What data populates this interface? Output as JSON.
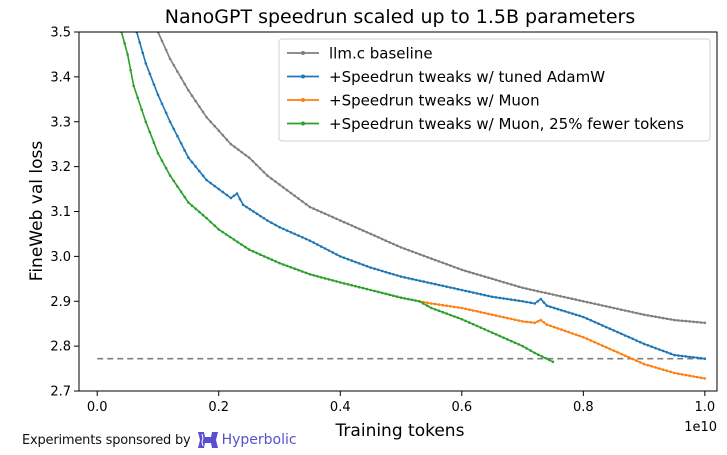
{
  "chart_data": {
    "type": "line",
    "title": "NanoGPT speedrun scaled up to 1.5B parameters",
    "xlabel": "Training tokens",
    "ylabel": "FineWeb val loss",
    "x_offset_label": "1e10",
    "xlim": [
      -0.03,
      1.02
    ],
    "ylim": [
      2.7,
      3.5
    ],
    "xticks": [
      0.0,
      0.2,
      0.4,
      0.6,
      0.8,
      1.0
    ],
    "xtick_labels": [
      "0.0",
      "0.2",
      "0.4",
      "0.6",
      "0.8",
      "1.0"
    ],
    "yticks": [
      2.7,
      2.8,
      2.9,
      3.0,
      3.1,
      3.2,
      3.3,
      3.4,
      3.5
    ],
    "ytick_labels": [
      "2.7",
      "2.8",
      "2.9",
      "3.0",
      "3.1",
      "3.2",
      "3.3",
      "3.4",
      "3.5"
    ],
    "grid": false,
    "legend_position": "top-right",
    "reference_line": {
      "y": 2.772,
      "x": [
        0.0,
        1.0
      ],
      "style": "dashed",
      "color": "#7f7f7f"
    },
    "series": [
      {
        "name": "llm.c baseline",
        "color": "#7f7f7f",
        "points": [
          [
            0.1,
            3.5
          ],
          [
            0.12,
            3.44
          ],
          [
            0.15,
            3.37
          ],
          [
            0.18,
            3.31
          ],
          [
            0.2,
            3.28
          ],
          [
            0.22,
            3.25
          ],
          [
            0.25,
            3.22
          ],
          [
            0.28,
            3.18
          ],
          [
            0.3,
            3.16
          ],
          [
            0.35,
            3.11
          ],
          [
            0.4,
            3.08
          ],
          [
            0.45,
            3.05
          ],
          [
            0.5,
            3.02
          ],
          [
            0.55,
            2.995
          ],
          [
            0.6,
            2.97
          ],
          [
            0.65,
            2.95
          ],
          [
            0.7,
            2.93
          ],
          [
            0.75,
            2.915
          ],
          [
            0.8,
            2.9
          ],
          [
            0.85,
            2.885
          ],
          [
            0.9,
            2.87
          ],
          [
            0.95,
            2.858
          ],
          [
            1.0,
            2.852
          ]
        ]
      },
      {
        "name": "+Speedrun tweaks w/ tuned AdamW",
        "color": "#1f77b4",
        "points": [
          [
            0.065,
            3.5
          ],
          [
            0.08,
            3.43
          ],
          [
            0.1,
            3.36
          ],
          [
            0.12,
            3.3
          ],
          [
            0.15,
            3.22
          ],
          [
            0.18,
            3.17
          ],
          [
            0.2,
            3.15
          ],
          [
            0.22,
            3.13
          ],
          [
            0.23,
            3.14
          ],
          [
            0.24,
            3.115
          ],
          [
            0.28,
            3.08
          ],
          [
            0.3,
            3.065
          ],
          [
            0.35,
            3.035
          ],
          [
            0.4,
            3.0
          ],
          [
            0.45,
            2.975
          ],
          [
            0.5,
            2.955
          ],
          [
            0.55,
            2.94
          ],
          [
            0.6,
            2.925
          ],
          [
            0.65,
            2.91
          ],
          [
            0.7,
            2.9
          ],
          [
            0.72,
            2.895
          ],
          [
            0.73,
            2.905
          ],
          [
            0.74,
            2.89
          ],
          [
            0.8,
            2.865
          ],
          [
            0.85,
            2.835
          ],
          [
            0.9,
            2.805
          ],
          [
            0.95,
            2.78
          ],
          [
            1.0,
            2.772
          ]
        ]
      },
      {
        "name": "+Speedrun tweaks w/ Muon",
        "color": "#ff7f0e",
        "points": [
          [
            0.53,
            2.9
          ],
          [
            0.55,
            2.895
          ],
          [
            0.6,
            2.885
          ],
          [
            0.65,
            2.87
          ],
          [
            0.7,
            2.855
          ],
          [
            0.72,
            2.852
          ],
          [
            0.73,
            2.858
          ],
          [
            0.74,
            2.848
          ],
          [
            0.8,
            2.82
          ],
          [
            0.85,
            2.79
          ],
          [
            0.9,
            2.76
          ],
          [
            0.95,
            2.74
          ],
          [
            1.0,
            2.728
          ]
        ]
      },
      {
        "name": "+Speedrun tweaks w/ Muon, 25% fewer tokens",
        "color": "#2ca02c",
        "points": [
          [
            0.04,
            3.5
          ],
          [
            0.05,
            3.45
          ],
          [
            0.06,
            3.38
          ],
          [
            0.08,
            3.3
          ],
          [
            0.1,
            3.23
          ],
          [
            0.12,
            3.18
          ],
          [
            0.15,
            3.12
          ],
          [
            0.18,
            3.085
          ],
          [
            0.2,
            3.06
          ],
          [
            0.25,
            3.015
          ],
          [
            0.3,
            2.985
          ],
          [
            0.35,
            2.96
          ],
          [
            0.4,
            2.942
          ],
          [
            0.45,
            2.925
          ],
          [
            0.5,
            2.908
          ],
          [
            0.53,
            2.9
          ],
          [
            0.55,
            2.885
          ],
          [
            0.6,
            2.86
          ],
          [
            0.65,
            2.83
          ],
          [
            0.7,
            2.8
          ],
          [
            0.72,
            2.785
          ],
          [
            0.75,
            2.765
          ]
        ]
      }
    ]
  },
  "footer": {
    "sponsor_text": "Experiments sponsored by",
    "brand": "Hyperbolic",
    "logo_icon": "hyperbolic-logo-icon"
  }
}
